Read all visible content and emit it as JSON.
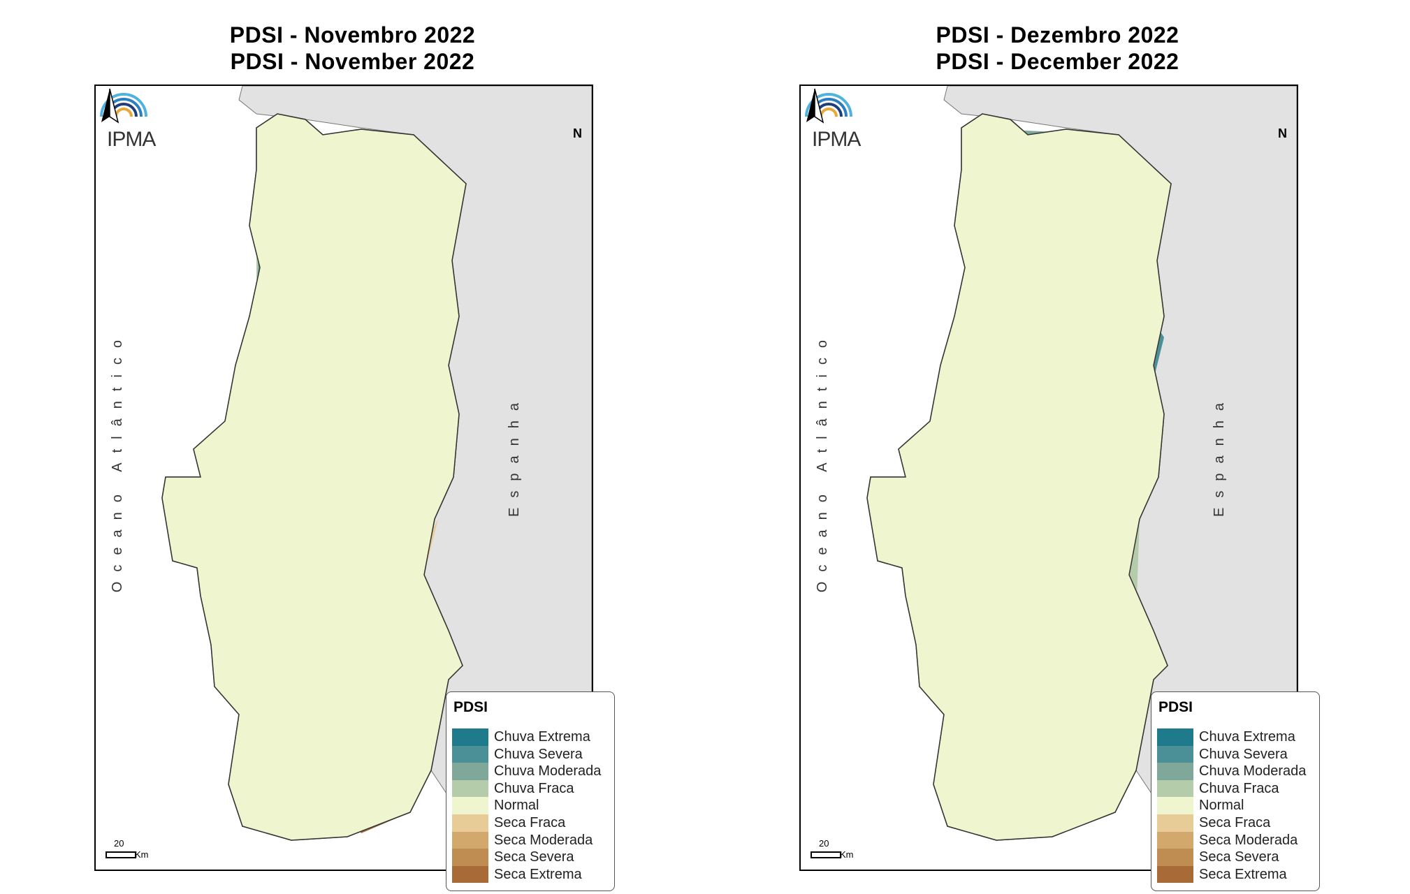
{
  "legend": {
    "title": "PDSI",
    "classes": [
      {
        "label": "Chuva Extrema",
        "color": "#1f7a8c"
      },
      {
        "label": "Chuva Severa",
        "color": "#4a9096"
      },
      {
        "label": "Chuva Moderada",
        "color": "#7fa89a"
      },
      {
        "label": "Chuva Fraca",
        "color": "#b5ccaa"
      },
      {
        "label": "Normal",
        "color": "#eff5cf"
      },
      {
        "label": "Seca Fraca",
        "color": "#e8cc98"
      },
      {
        "label": "Seca Moderada",
        "color": "#d2a86c"
      },
      {
        "label": "Seca Severa",
        "color": "#bf8c52"
      },
      {
        "label": "Seca Extrema",
        "color": "#a86b38"
      }
    ]
  },
  "map_labels": {
    "logo": "IPMA",
    "north": "N",
    "ocean": "Oceano Atlântico",
    "spain": "Espanha",
    "scale_value": "20",
    "scale_unit": "Km"
  },
  "panels": [
    {
      "title_pt": "PDSI - Novembro 2022",
      "title_en": "PDSI - November 2022"
    },
    {
      "title_pt": "PDSI - Dezembro 2022",
      "title_en": "PDSI - December 2022"
    }
  ]
}
